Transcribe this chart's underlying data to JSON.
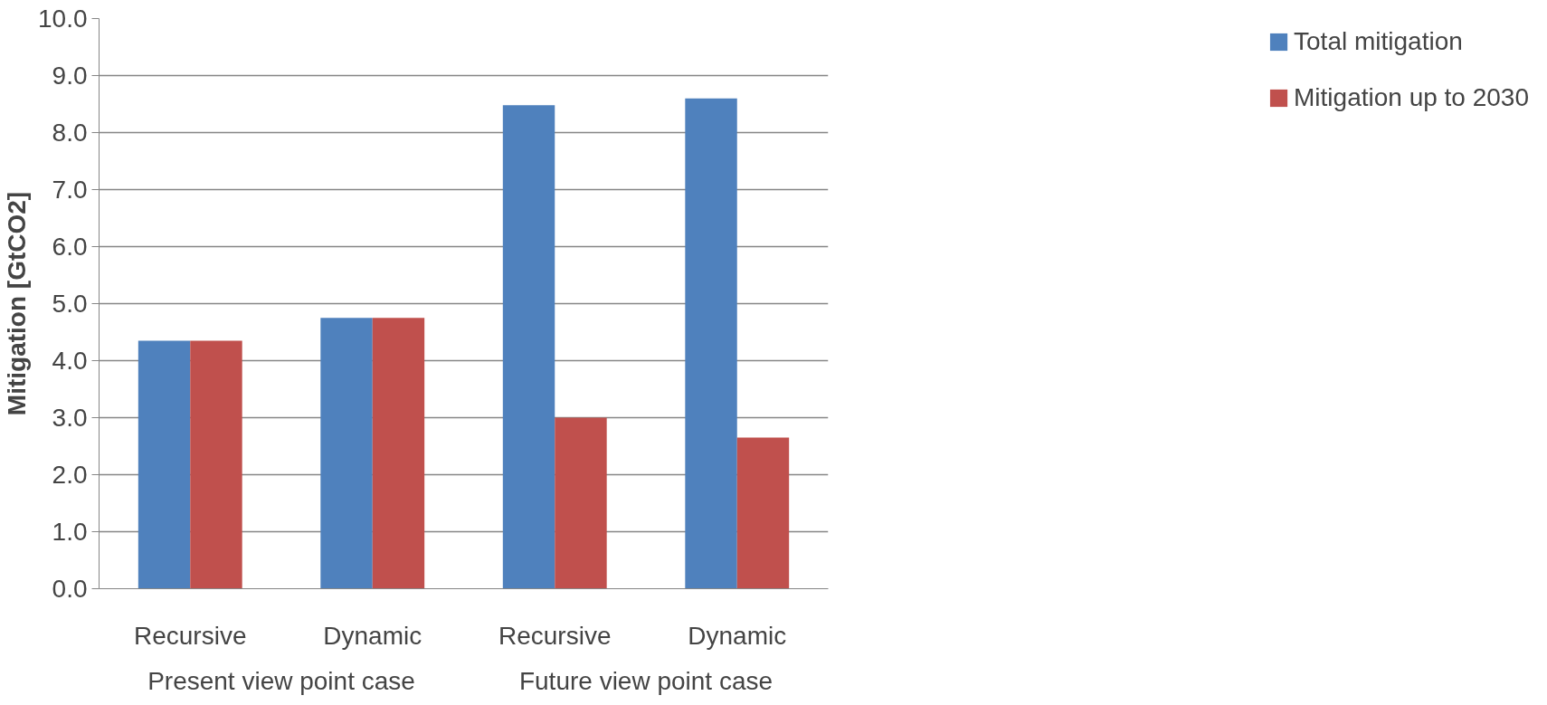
{
  "chart_data": {
    "type": "bar",
    "ylabel": "Mitigation [GtCO2]",
    "categories": [
      "Recursive",
      "Dynamic",
      "Recursive",
      "Dynamic"
    ],
    "annotations": [
      "Present view point case",
      "Future view point case"
    ],
    "series": [
      {
        "name": "Total mitigation",
        "color": "#4f81bd",
        "values": [
          4.35,
          4.75,
          8.48,
          8.6
        ]
      },
      {
        "name": "Mitigation up to 2030",
        "color": "#c0504d",
        "values": [
          4.35,
          4.75,
          3.0,
          2.65
        ]
      }
    ],
    "ylim": [
      0,
      10
    ],
    "yticks": [
      {
        "value": 0,
        "label": "0.0"
      },
      {
        "value": 1,
        "label": "1.0"
      },
      {
        "value": 2,
        "label": "2.0"
      },
      {
        "value": 3,
        "label": "3.0"
      },
      {
        "value": 4,
        "label": "4.0"
      },
      {
        "value": 5,
        "label": "5.0"
      },
      {
        "value": 6,
        "label": "6.0"
      },
      {
        "value": 7,
        "label": "7.0"
      },
      {
        "value": 8,
        "label": "8.0"
      },
      {
        "value": 9,
        "label": "9.0"
      },
      {
        "value": 10,
        "label": "10.0"
      }
    ],
    "grid": "y",
    "legend": "right"
  }
}
